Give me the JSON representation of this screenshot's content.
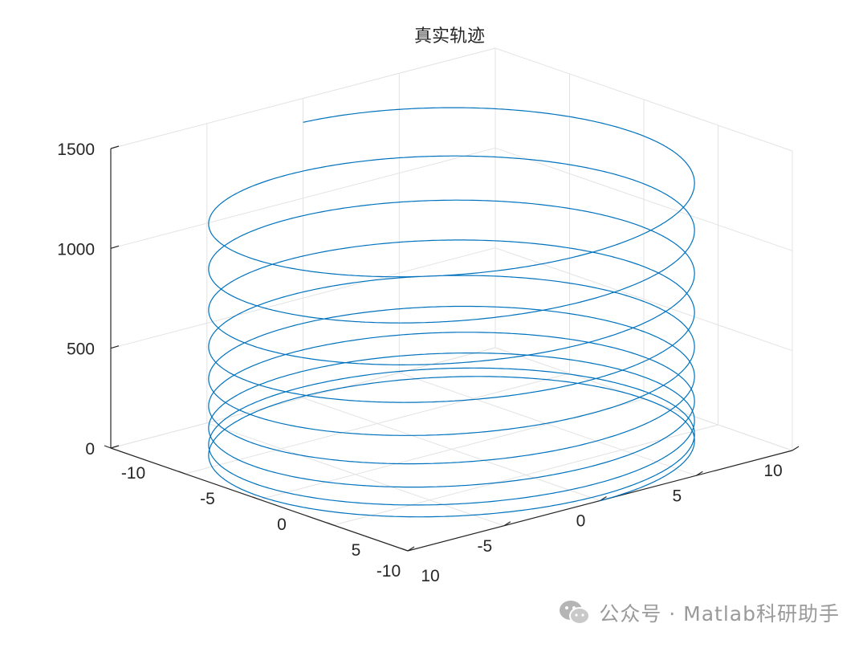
{
  "chart_data": {
    "type": "line3d",
    "title": "真实轨迹",
    "xlabel": "",
    "ylabel": "",
    "zlabel": "",
    "xlim": [
      -10,
      10
    ],
    "ylim": [
      -10,
      10
    ],
    "zlim": [
      0,
      1500
    ],
    "xticks": [
      "-10",
      "-5",
      "0",
      "5",
      "10"
    ],
    "yticks": [
      "-10",
      "-5",
      "0",
      "5",
      "10"
    ],
    "zticks": [
      "0",
      "500",
      "1000",
      "1500"
    ],
    "grid": true,
    "color": "#0072BD",
    "series": [
      {
        "x": "x(t) = 10·cos(t)",
        "y": "y(t) = 10·sin(t)",
        "z": "z(t) increases with t, spacing of turns grows with height",
        "turns": 9.5,
        "z_start": 0,
        "z_end": 1380
      }
    ]
  },
  "watermark": {
    "text": "公众号 · Matlab科研助手"
  }
}
